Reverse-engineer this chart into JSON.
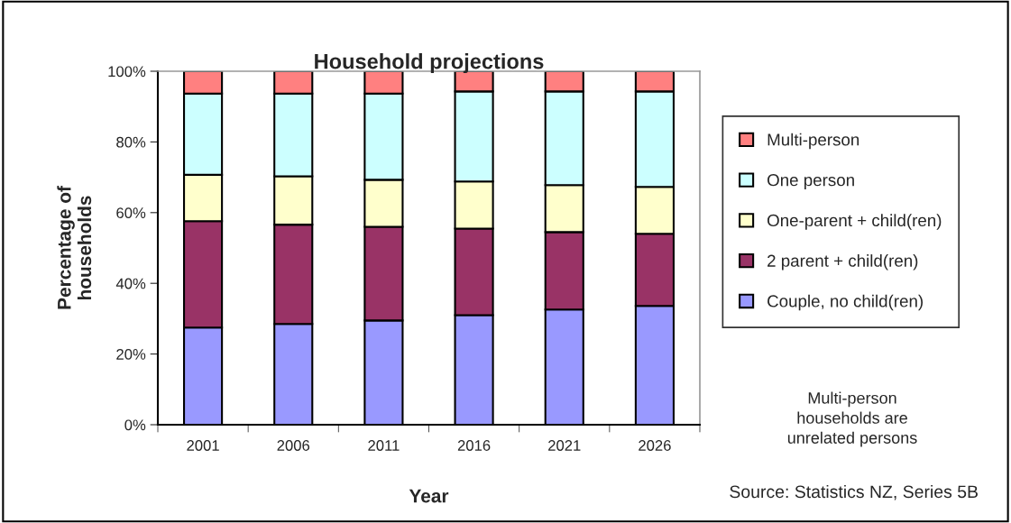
{
  "chart_data": {
    "type": "bar",
    "title": "Household projections",
    "xlabel": "Year",
    "ylabel": "Percentage of\nhouseholds",
    "categories": [
      "2001",
      "2006",
      "2011",
      "2016",
      "2021",
      "2026"
    ],
    "stacked": true,
    "series": [
      {
        "name": "Couple, no child(ren)",
        "color": "#9999ff",
        "values": [
          27.5,
          28.5,
          29.5,
          31.0,
          32.6,
          33.6
        ]
      },
      {
        "name": "2 parent + child(ren)",
        "color": "#993366",
        "values": [
          30.1,
          28.1,
          26.5,
          24.5,
          21.9,
          20.4
        ]
      },
      {
        "name": "One-parent + child(ren)",
        "color": "#ffffcc",
        "values": [
          13.1,
          13.7,
          13.3,
          13.3,
          13.3,
          13.3
        ]
      },
      {
        "name": "One person",
        "color": "#ccffff",
        "values": [
          23.0,
          23.4,
          24.4,
          25.5,
          26.5,
          27.0
        ]
      },
      {
        "name": "Multi-person",
        "color": "#ff8080",
        "values": [
          6.3,
          6.3,
          6.3,
          5.7,
          5.7,
          5.7
        ]
      }
    ],
    "ylim": [
      0,
      100
    ],
    "yticks": [
      {
        "value": 0,
        "label": "0%"
      },
      {
        "value": 20,
        "label": "20%"
      },
      {
        "value": 40,
        "label": "40%"
      },
      {
        "value": 60,
        "label": "60%"
      },
      {
        "value": 80,
        "label": "80%"
      },
      {
        "value": 100,
        "label": "100%"
      }
    ],
    "legend": "right",
    "annotations": [
      "Multi-person\nhouseholds are\nunrelated persons",
      "Source: Statistics NZ, Series 5B"
    ]
  }
}
